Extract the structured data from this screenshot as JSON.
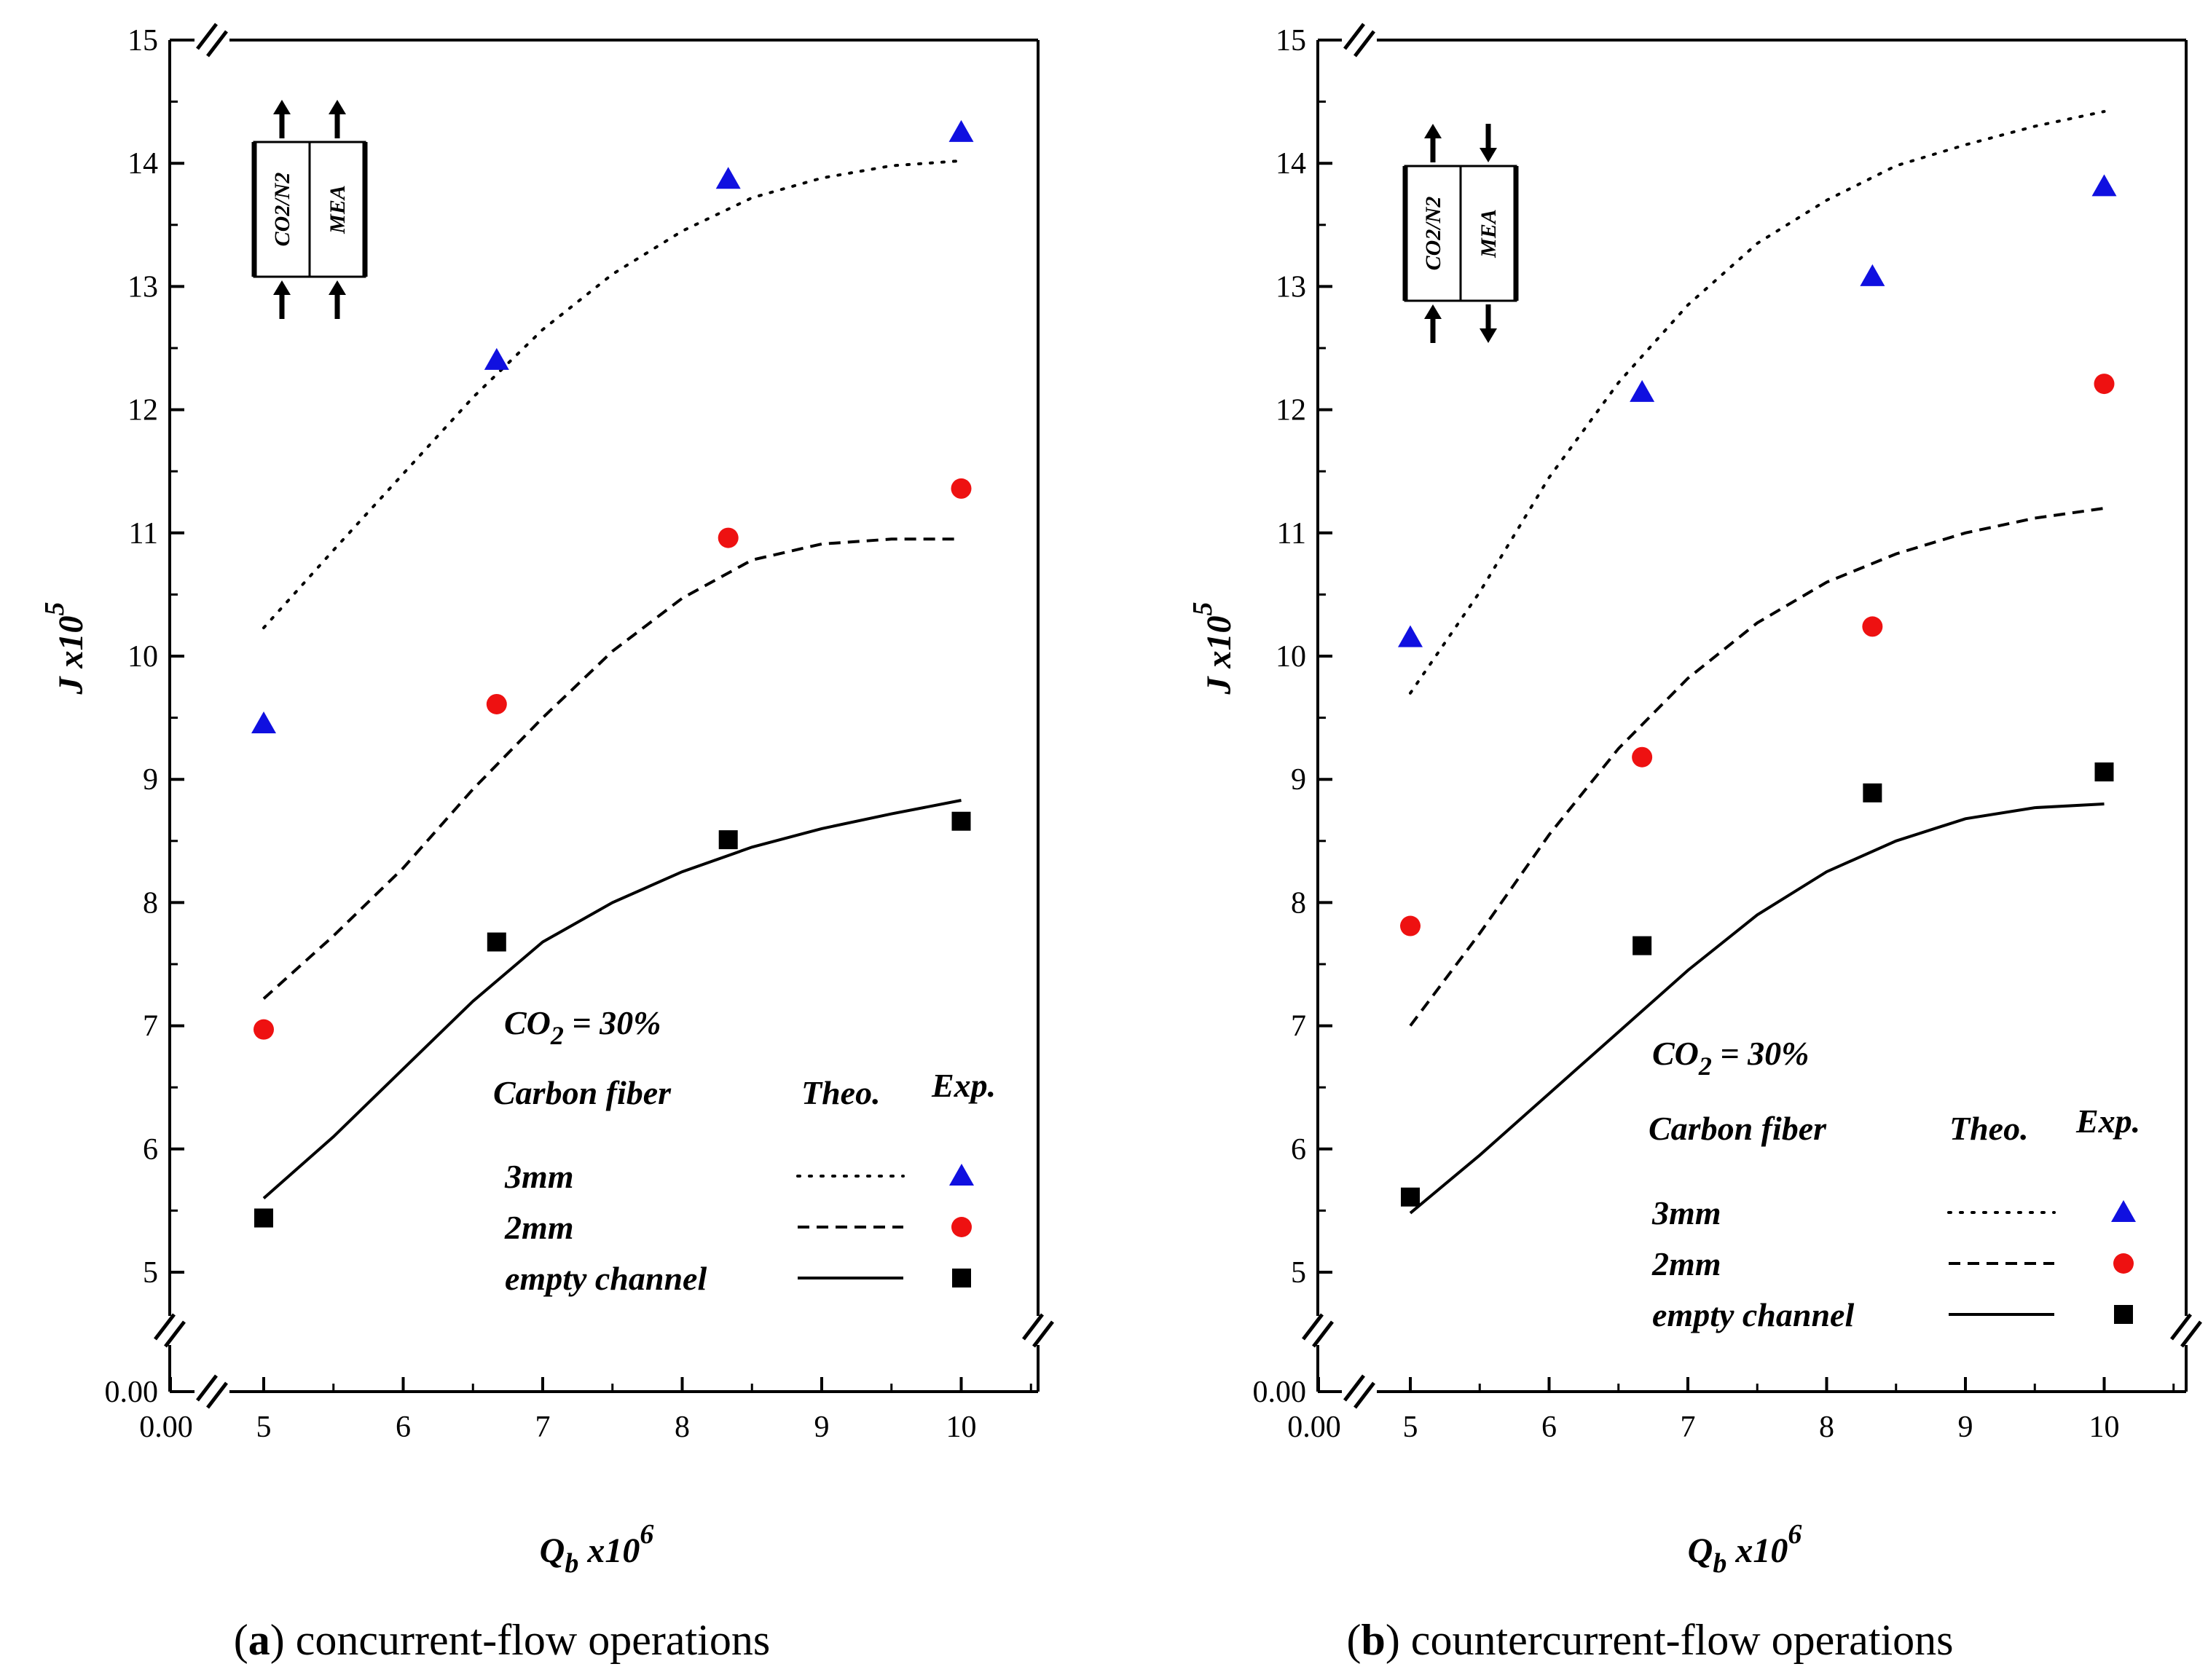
{
  "chart_data": [
    {
      "type": "scatter",
      "caption_letter": "a",
      "caption_text": "concurrent-flow operations",
      "xlabel": "Q",
      "xlabel_sub": "b",
      "xlabel_rest": " x10",
      "xlabel_exp": "6",
      "ylabel": "J x10",
      "ylabel_exp": "5",
      "xlim": [
        4.35,
        10.55
      ],
      "ylim": [
        4.75,
        15
      ],
      "x_origin_label": "0.00",
      "y_origin_label": "0.00",
      "xticks": [
        5,
        6,
        7,
        8,
        9,
        10
      ],
      "yticks": [
        5,
        6,
        7,
        8,
        9,
        10,
        11,
        12,
        13,
        14,
        15
      ],
      "inset": {
        "left_label": "CO2/N2",
        "right_label": "MEA",
        "left_flow": "up",
        "right_flow": "up"
      },
      "annotation": {
        "prefix": "CO",
        "sub": "2",
        "suffix": " = 30%"
      },
      "legend": {
        "heading": "Carbon fiber",
        "theo_label": "Theo.",
        "exp_label": "Exp.",
        "entries": [
          "3mm",
          "2mm",
          "empty channel"
        ]
      },
      "series": [
        {
          "name": "3mm",
          "color": "#1010e0",
          "marker": "triangle",
          "dash": "dot",
          "exp_x": [
            5,
            6.67,
            8.33,
            10
          ],
          "exp_y": [
            9.45,
            12.4,
            13.87,
            14.25
          ],
          "theo_x": [
            5,
            5.5,
            6,
            6.5,
            7,
            7.5,
            8,
            8.5,
            9,
            9.5,
            10
          ],
          "theo_y": [
            10.23,
            10.86,
            11.48,
            12.1,
            12.65,
            13.1,
            13.45,
            13.72,
            13.88,
            13.98,
            14.02
          ]
        },
        {
          "name": "2mm",
          "color": "#ee1111",
          "marker": "circle",
          "dash": "dash",
          "exp_x": [
            5,
            6.67,
            8.33,
            10
          ],
          "exp_y": [
            6.97,
            9.61,
            10.96,
            11.36
          ],
          "theo_x": [
            5,
            5.5,
            6,
            6.5,
            7,
            7.5,
            8,
            8.5,
            9,
            9.5,
            10
          ],
          "theo_y": [
            7.22,
            7.73,
            8.28,
            8.92,
            9.5,
            10.04,
            10.47,
            10.78,
            10.91,
            10.95,
            10.95
          ]
        },
        {
          "name": "empty channel",
          "color": "#000000",
          "marker": "square",
          "dash": "solid",
          "exp_x": [
            5,
            6.67,
            8.33,
            10
          ],
          "exp_y": [
            5.44,
            7.68,
            8.51,
            8.66
          ],
          "theo_x": [
            5,
            5.5,
            6,
            6.5,
            7,
            7.5,
            8,
            8.5,
            9,
            9.5,
            10
          ],
          "theo_y": [
            5.6,
            6.1,
            6.65,
            7.2,
            7.68,
            8.0,
            8.25,
            8.45,
            8.6,
            8.72,
            8.83
          ]
        }
      ]
    },
    {
      "type": "scatter",
      "caption_letter": "b",
      "caption_text": "countercurrent-flow operations",
      "xlabel": "Q",
      "xlabel_sub": "b",
      "xlabel_rest": " x10",
      "xlabel_exp": "6",
      "ylabel": "J x10",
      "ylabel_exp": "5",
      "xlim": [
        4.35,
        10.55
      ],
      "ylim": [
        4.75,
        15
      ],
      "x_origin_label": "0.00",
      "y_origin_label": "0.00",
      "xticks": [
        5,
        6,
        7,
        8,
        9,
        10
      ],
      "yticks": [
        5,
        6,
        7,
        8,
        9,
        10,
        11,
        12,
        13,
        14,
        15
      ],
      "inset": {
        "left_label": "CO2/N2",
        "right_label": "MEA",
        "left_flow": "up",
        "right_flow": "down"
      },
      "annotation": {
        "prefix": "CO",
        "sub": "2",
        "suffix": " = 30%"
      },
      "legend": {
        "heading": "Carbon fiber",
        "theo_label": "Theo.",
        "exp_label": "Exp.",
        "entries": [
          "3mm",
          "2mm",
          "empty channel"
        ]
      },
      "series": [
        {
          "name": "3mm",
          "color": "#1010e0",
          "marker": "triangle",
          "dash": "dot",
          "exp_x": [
            5,
            6.67,
            8.33,
            10
          ],
          "exp_y": [
            10.15,
            12.14,
            13.08,
            13.81
          ],
          "theo_x": [
            5,
            5.5,
            6,
            6.5,
            7,
            7.5,
            8,
            8.5,
            9,
            9.5,
            10
          ],
          "theo_y": [
            9.7,
            10.52,
            11.45,
            12.22,
            12.85,
            13.35,
            13.7,
            13.98,
            14.15,
            14.3,
            14.42
          ]
        },
        {
          "name": "2mm",
          "color": "#ee1111",
          "marker": "circle",
          "dash": "dash",
          "exp_x": [
            5,
            6.67,
            8.33,
            10
          ],
          "exp_y": [
            7.81,
            9.18,
            10.24,
            12.21
          ],
          "theo_x": [
            5,
            5.5,
            6,
            6.5,
            7,
            7.5,
            8,
            8.5,
            9,
            9.5,
            10
          ],
          "theo_y": [
            7.0,
            7.75,
            8.55,
            9.25,
            9.82,
            10.27,
            10.6,
            10.83,
            11.0,
            11.12,
            11.2
          ]
        },
        {
          "name": "empty channel",
          "color": "#000000",
          "marker": "square",
          "dash": "solid",
          "exp_x": [
            5,
            6.67,
            8.33,
            10
          ],
          "exp_y": [
            5.61,
            7.65,
            8.89,
            9.06
          ],
          "theo_x": [
            5,
            5.5,
            6,
            6.5,
            7,
            7.5,
            8,
            8.5,
            9,
            9.5,
            10
          ],
          "theo_y": [
            5.48,
            5.95,
            6.45,
            6.95,
            7.45,
            7.9,
            8.25,
            8.5,
            8.68,
            8.77,
            8.8
          ]
        }
      ]
    }
  ]
}
